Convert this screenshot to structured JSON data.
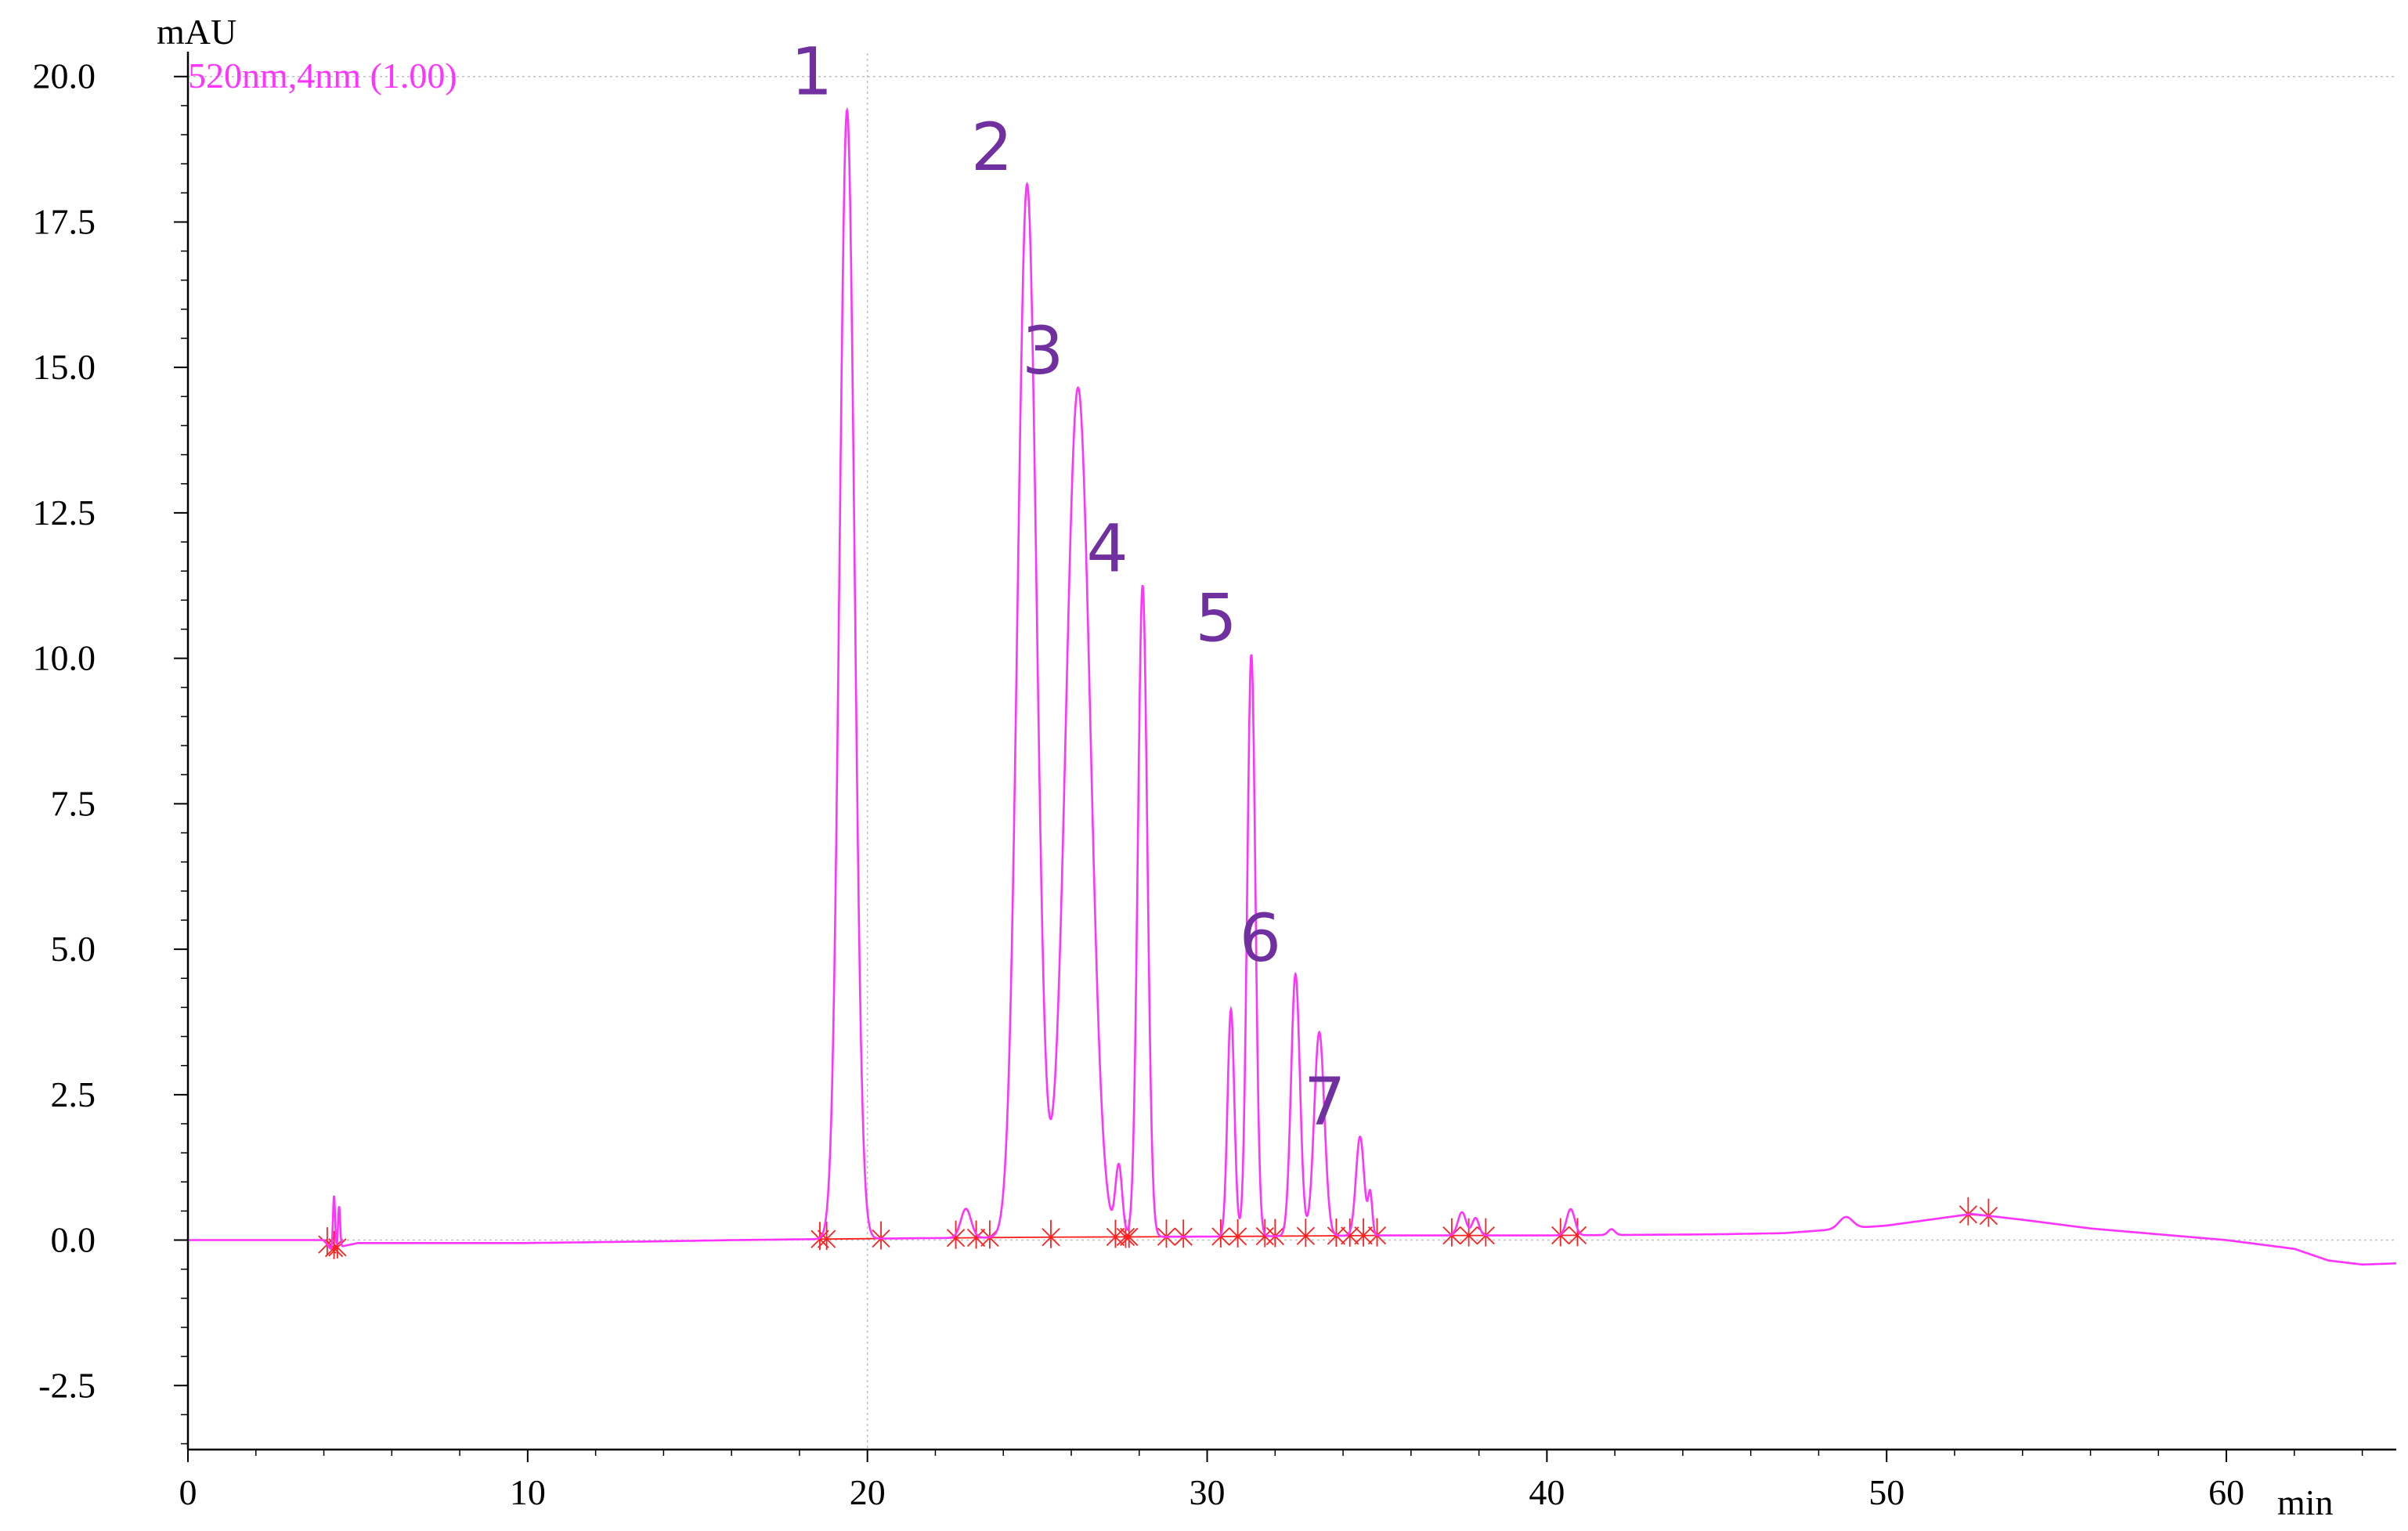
{
  "chart_data": {
    "type": "line",
    "trace_label": "520nm,4nm (1.00)",
    "y_unit": "mAU",
    "x_unit": "min",
    "xlim": [
      0,
      65
    ],
    "ylim": [
      -3.6,
      20.4
    ],
    "x_ticks": [
      0,
      10,
      20,
      30,
      40,
      50,
      60
    ],
    "x_tick_labels": [
      "0",
      "10",
      "20",
      "30",
      "40",
      "50",
      "60"
    ],
    "y_ticks": [
      -2.5,
      0.0,
      2.5,
      5.0,
      7.5,
      10.0,
      12.5,
      15.0,
      17.5,
      20.0
    ],
    "y_tick_labels": [
      "-2.5",
      "0.0",
      "2.5",
      "5.0",
      "7.5",
      "10.0",
      "12.5",
      "15.0",
      "17.5",
      "20.0"
    ],
    "grid": "dotted reference lines at y=20.0, y=0.0 and x=20",
    "colors": {
      "trace": "#ff33ff",
      "baseline_marks": "#ff2020",
      "peak_labels": "#7030a0",
      "axis": "#000000",
      "grid": "#c0c0c0"
    },
    "peaks": [
      {
        "label": "1",
        "time": 19.4,
        "height": 19.4,
        "width": 0.22
      },
      {
        "label": "2",
        "time": 24.7,
        "height": 18.1,
        "width": 0.28
      },
      {
        "label": "3",
        "time": 26.2,
        "height": 14.6,
        "width": 0.36
      },
      {
        "label": "4",
        "time": 28.1,
        "height": 11.2,
        "width": 0.14
      },
      {
        "label": "5",
        "time": 31.3,
        "height": 10.0,
        "width": 0.12
      },
      {
        "label": "6",
        "time": 32.6,
        "height": 4.5,
        "width": 0.13
      },
      {
        "label": "7",
        "time": 34.5,
        "height": 1.7,
        "width": 0.12
      }
    ],
    "minor_peaks": [
      {
        "time": 4.3,
        "height": 0.9,
        "width": 0.03
      },
      {
        "time": 4.45,
        "height": 0.7,
        "width": 0.03
      },
      {
        "time": 22.9,
        "height": 0.5,
        "width": 0.15
      },
      {
        "time": 27.4,
        "height": 1.2,
        "width": 0.1
      },
      {
        "time": 30.7,
        "height": 3.9,
        "width": 0.1
      },
      {
        "time": 33.3,
        "height": 3.5,
        "width": 0.15
      },
      {
        "time": 34.8,
        "height": 0.7,
        "width": 0.06
      },
      {
        "time": 37.5,
        "height": 0.4,
        "width": 0.12
      },
      {
        "time": 37.9,
        "height": 0.3,
        "width": 0.1
      },
      {
        "time": 40.7,
        "height": 0.45,
        "width": 0.12
      },
      {
        "time": 41.9,
        "height": 0.1,
        "width": 0.1
      },
      {
        "time": 48.8,
        "height": 0.2,
        "width": 0.2
      }
    ],
    "baseline_drift": [
      [
        0,
        0.0
      ],
      [
        4.0,
        0.0
      ],
      [
        4.2,
        -0.15
      ],
      [
        5.0,
        -0.05
      ],
      [
        10,
        -0.05
      ],
      [
        14,
        -0.02
      ],
      [
        16,
        0.0
      ],
      [
        19,
        0.02
      ],
      [
        25,
        0.05
      ],
      [
        30,
        0.06
      ],
      [
        35,
        0.08
      ],
      [
        40,
        0.08
      ],
      [
        45,
        0.1
      ],
      [
        47,
        0.12
      ],
      [
        50,
        0.25
      ],
      [
        52.5,
        0.45
      ],
      [
        54,
        0.35
      ],
      [
        56,
        0.2
      ],
      [
        60,
        0.0
      ],
      [
        62,
        -0.15
      ],
      [
        63,
        -0.35
      ],
      [
        64,
        -0.42
      ],
      [
        65,
        -0.4
      ]
    ],
    "integration_marks": [
      4.1,
      4.3,
      4.4,
      18.6,
      18.8,
      20.4,
      22.6,
      23.2,
      23.6,
      25.4,
      27.3,
      27.6,
      27.7,
      28.8,
      29.3,
      30.4,
      30.9,
      31.7,
      32.0,
      32.9,
      33.8,
      34.2,
      34.6,
      35.0,
      37.2,
      37.7,
      38.2,
      40.4,
      40.9,
      52.4,
      53.0
    ]
  }
}
